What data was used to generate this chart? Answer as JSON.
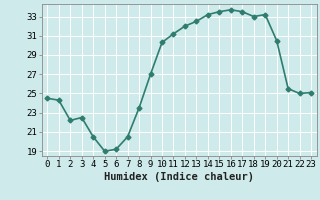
{
  "x": [
    0,
    1,
    2,
    3,
    4,
    5,
    6,
    7,
    8,
    9,
    10,
    11,
    12,
    13,
    14,
    15,
    16,
    17,
    18,
    19,
    20,
    21,
    22,
    23
  ],
  "y": [
    24.5,
    24.3,
    22.2,
    22.5,
    20.5,
    19.0,
    19.2,
    20.5,
    23.5,
    27.0,
    30.3,
    31.2,
    32.0,
    32.5,
    33.2,
    33.5,
    33.7,
    33.5,
    33.0,
    33.2,
    30.5,
    25.5,
    25.0,
    25.1
  ],
  "line_color": "#2e7d6e",
  "marker": "D",
  "markersize": 2.5,
  "background_color": "#ceeaea",
  "grid_color": "#ffffff",
  "xlabel": "Humidex (Indice chaleur)",
  "xlim": [
    -0.5,
    23.5
  ],
  "ylim": [
    18.5,
    34.3
  ],
  "yticks": [
    19,
    21,
    23,
    25,
    27,
    29,
    31,
    33
  ],
  "xticks": [
    0,
    1,
    2,
    3,
    4,
    5,
    6,
    7,
    8,
    9,
    10,
    11,
    12,
    13,
    14,
    15,
    16,
    17,
    18,
    19,
    20,
    21,
    22,
    23
  ],
  "xtick_labels": [
    "0",
    "1",
    "2",
    "3",
    "4",
    "5",
    "6",
    "7",
    "8",
    "9",
    "10",
    "11",
    "12",
    "13",
    "14",
    "15",
    "16",
    "17",
    "18",
    "19",
    "20",
    "21",
    "22",
    "23"
  ],
  "xlabel_fontsize": 7.5,
  "tick_fontsize": 6.5,
  "linewidth": 1.2
}
